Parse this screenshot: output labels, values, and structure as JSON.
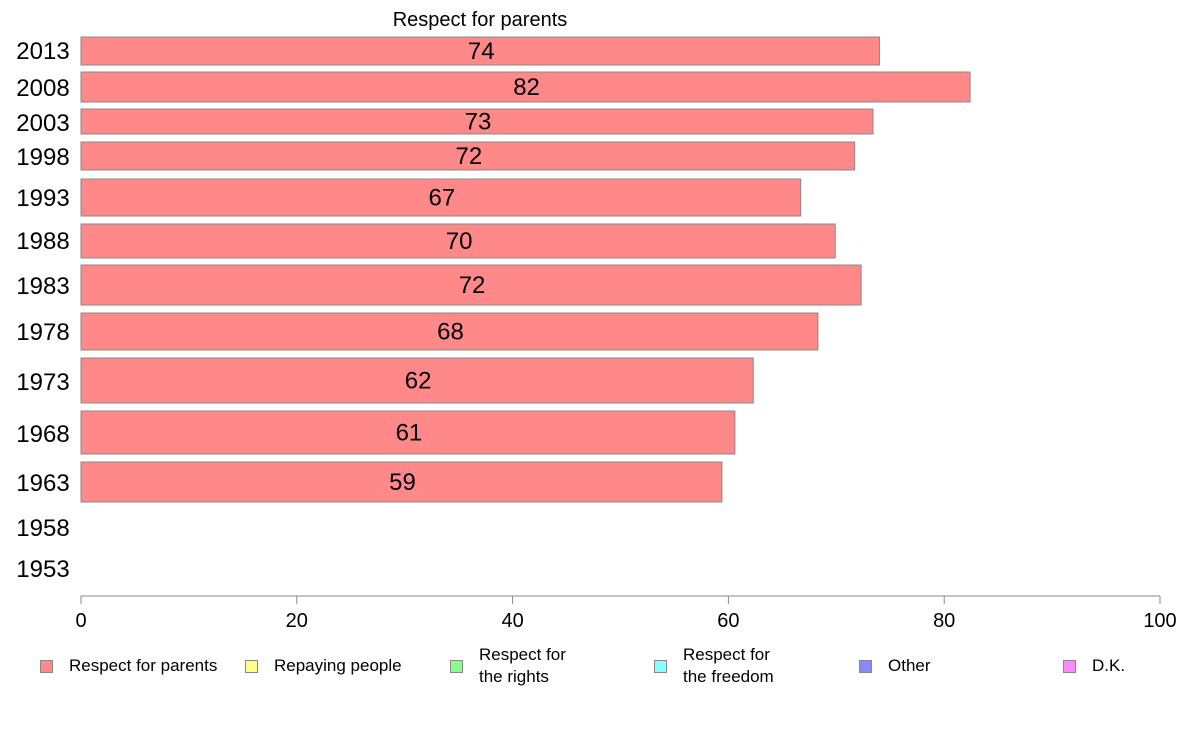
{
  "chart_data": {
    "type": "bar",
    "orientation": "horizontal",
    "title": "Respect for parents",
    "categories": [
      "2013",
      "2008",
      "2003",
      "1998",
      "1993",
      "1988",
      "1983",
      "1978",
      "1973",
      "1968",
      "1963",
      "1958",
      "1953"
    ],
    "series": [
      {
        "name": "Respect for parents",
        "color": "#ff8888",
        "values": [
          74,
          82,
          73,
          72,
          67,
          70,
          72,
          68,
          62,
          61,
          59,
          null,
          null
        ],
        "bar_values": [
          74,
          82.4,
          73.4,
          71.7,
          66.7,
          69.9,
          72.3,
          68.3,
          62.3,
          60.6,
          59.4,
          null,
          null
        ]
      }
    ],
    "xlim": [
      0,
      100
    ],
    "xticks": [
      0,
      20,
      40,
      60,
      80,
      100
    ],
    "xlabel": "",
    "ylabel": "",
    "grid": false,
    "legend_position": "bottom"
  },
  "legend": [
    {
      "label": "Respect for parents",
      "color": "#ff8888"
    },
    {
      "label": "Repaying people",
      "color": "#ffff88"
    },
    {
      "label": "Respect for\nthe rights",
      "color": "#88ff88"
    },
    {
      "label": "Respect for\nthe freedom",
      "color": "#88ffff"
    },
    {
      "label": "Other",
      "color": "#8888ff"
    },
    {
      "label": "D.K.",
      "color": "#ff88ff"
    }
  ]
}
